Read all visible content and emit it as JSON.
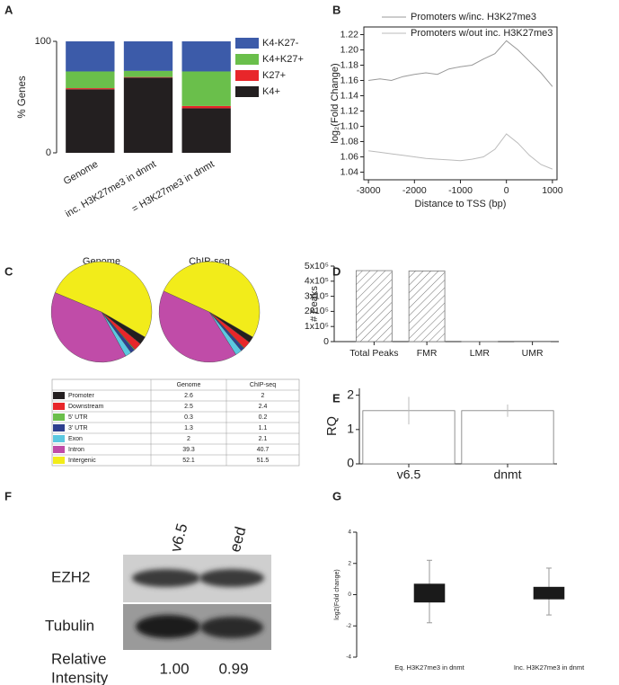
{
  "panel_labels": [
    "A",
    "B",
    "C",
    "D",
    "E",
    "F",
    "G"
  ],
  "chart_data": [
    {
      "type": "stacked_bar",
      "ylabel": "% Genes",
      "categories": [
        "Genome",
        "inc. H3K27me3 in dnmt",
        "= H3K27me3 in dnmt"
      ],
      "series": [
        {
          "name": "K4+",
          "color": "#231f20",
          "values": [
            57,
            67.5,
            40
          ]
        },
        {
          "name": "K27+",
          "color": "#e8262a",
          "values": [
            1,
            0.5,
            2
          ]
        },
        {
          "name": "K4+K27+",
          "color": "#6abf4b",
          "values": [
            15,
            5.5,
            31
          ]
        },
        {
          "name": "K4-K27-",
          "color": "#3c5ba9",
          "values": [
            27,
            26.5,
            27
          ]
        }
      ],
      "ylim": [
        0,
        100
      ],
      "yticks": [
        0,
        100
      ]
    },
    {
      "type": "line",
      "ylabel": "log₂(Fold Change)",
      "xlabel": "Distance to TSS (bp)",
      "x": [
        -3000,
        -2750,
        -2500,
        -2250,
        -2000,
        -1750,
        -1500,
        -1250,
        -1000,
        -750,
        -500,
        -250,
        0,
        250,
        500,
        750,
        1000
      ],
      "series": [
        {
          "name": "Promoters w/inc. H3K27me3",
          "color": "#999999",
          "values": [
            1.16,
            1.162,
            1.16,
            1.165,
            1.168,
            1.17,
            1.168,
            1.175,
            1.178,
            1.18,
            1.188,
            1.195,
            1.212,
            1.2,
            1.185,
            1.17,
            1.152
          ]
        },
        {
          "name": "Promoters w/out inc. H3K27me3",
          "color": "#bbbbbb",
          "values": [
            1.068,
            1.066,
            1.064,
            1.062,
            1.06,
            1.058,
            1.057,
            1.056,
            1.055,
            1.057,
            1.06,
            1.07,
            1.09,
            1.078,
            1.062,
            1.05,
            1.044
          ]
        }
      ],
      "xlim": [
        -3100,
        1100
      ],
      "xticks": [
        -3000,
        -2000,
        -1000,
        0,
        1000
      ],
      "ylim": [
        1.03,
        1.23
      ],
      "yticks": [
        1.04,
        1.06,
        1.08,
        {
          "value": 1.1,
          "label": "1.10"
        },
        1.12,
        1.14,
        1.16,
        1.18,
        {
          "value": 1.2,
          "label": "1.20"
        },
        1.22
      ]
    },
    {
      "type": "pie",
      "title": "Genome",
      "categories": [
        "Promoter",
        "Downstream",
        "5' UTR",
        "3' UTR",
        "Exon",
        "Intron",
        "Intergenic"
      ],
      "colors": [
        "#231f20",
        "#e8262a",
        "#6abf4b",
        "#2e3f8f",
        "#5bc8e0",
        "#c04ca8",
        "#f2ec1a"
      ],
      "values": [
        2.6,
        2.5,
        0.3,
        1.3,
        2,
        39.3,
        52.1
      ]
    },
    {
      "type": "pie",
      "title": "ChIP-seq",
      "colors": [
        "#231f20",
        "#e8262a",
        "#6abf4b",
        "#2e3f8f",
        "#5bc8e0",
        "#c04ca8",
        "#f2ec1a"
      ],
      "values": [
        2,
        2.4,
        0.2,
        1.1,
        2.1,
        40.7,
        51.5
      ]
    },
    {
      "type": "bar",
      "ylabel": "# Peaks",
      "hatch": true,
      "categories": [
        "Total Peaks",
        "FMR",
        "LMR",
        "UMR"
      ],
      "values": [
        470000,
        468000,
        800,
        2500
      ],
      "ylim": [
        0,
        500000
      ],
      "yticks": [
        0,
        {
          "value": 100000,
          "label": "1x10⁵"
        },
        {
          "value": 200000,
          "label": "2x10⁵"
        },
        {
          "value": 300000,
          "label": "3x10⁵"
        },
        {
          "value": 400000,
          "label": "4x10⁵"
        },
        {
          "value": 500000,
          "label": "5x10⁵"
        }
      ]
    },
    {
      "type": "bar",
      "ylabel": "RQ",
      "categories": [
        "v6.5",
        "dnmt"
      ],
      "values": [
        1.55,
        1.55
      ],
      "errors": [
        0.4,
        0.18
      ],
      "ylim": [
        0,
        2.2
      ],
      "yticks": [
        0,
        1,
        2
      ]
    },
    {
      "type": "box",
      "ylabel": "log2(Fold change)",
      "categories": [
        "Eq. H3K27me3 in dnmt",
        "Inc. H3K27me3 in dnmt"
      ],
      "whisker_low": [
        -1.8,
        -1.3
      ],
      "q1": [
        -0.5,
        -0.3
      ],
      "q3": [
        0.7,
        0.5
      ],
      "whisker_high": [
        2.2,
        1.7
      ],
      "ylim": [
        -4,
        4
      ],
      "yticks": [
        -4,
        -2,
        0,
        2,
        4
      ]
    }
  ],
  "blot": {
    "lanes": [
      "v6.5",
      "eed"
    ],
    "rows": [
      "EZH2",
      "Tubulin"
    ],
    "intensity_label": [
      "Relative",
      "Intensity"
    ],
    "intensities": [
      "1.00",
      "0.99"
    ]
  }
}
